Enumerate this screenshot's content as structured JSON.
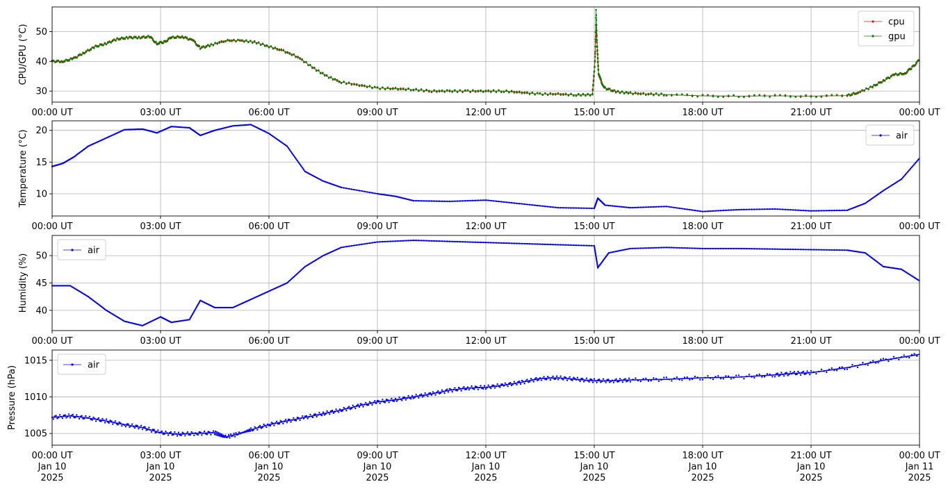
{
  "chart_data": [
    {
      "type": "line",
      "ylabel": "CPU/GPU (°C)",
      "ylim": [
        26.3,
        58.3
      ],
      "yticks": [
        30,
        40,
        50
      ],
      "grid": true,
      "legend": "top-right",
      "x_ticks": [
        "00:00 UT",
        "03:00 UT",
        "06:00 UT",
        "09:00 UT",
        "12:00 UT",
        "15:00 UT",
        "18:00 UT",
        "21:00 UT",
        "00:00 UT"
      ],
      "x_hours": [
        0,
        0.5,
        1,
        1.5,
        2,
        2.5,
        3,
        3.5,
        4,
        4.5,
        5,
        5.5,
        6,
        6.5,
        7,
        7.5,
        8,
        8.5,
        9,
        9.5,
        10,
        10.5,
        11,
        11.5,
        12,
        12.5,
        13,
        13.5,
        14,
        14.5,
        15,
        15.05,
        15.1,
        15.2,
        15.5,
        16,
        17,
        18,
        19,
        20,
        21,
        22,
        22.5,
        23,
        23.5,
        24
      ],
      "series": [
        {
          "name": "cpu",
          "color": "#ff0000",
          "values": [
            40,
            40.5,
            42,
            44.5,
            46,
            47.5,
            48,
            48,
            48,
            46.5,
            48,
            47.5,
            44.5,
            46.5,
            47,
            46.5,
            45,
            43.5,
            42,
            40,
            37,
            34.5,
            32.5,
            31.5,
            31,
            31,
            30.5,
            30,
            30,
            30,
            30,
            30,
            29.5,
            29,
            29,
            29,
            28.5,
            28.5,
            29,
            52,
            35,
            31,
            29.5,
            29,
            28.5,
            28.5
          ]
        },
        {
          "name": "gpu",
          "color": "#008000",
          "values": [
            40,
            40.5,
            42,
            44.5,
            46,
            47.5,
            48,
            48,
            48,
            46.5,
            48,
            47.5,
            44.5,
            46.5,
            47,
            46.5,
            45,
            43.5,
            42,
            40,
            37,
            34.5,
            32.5,
            31.5,
            31,
            31,
            30.5,
            30,
            30,
            30,
            30,
            30,
            29.5,
            29,
            29,
            29,
            28.5,
            28.5,
            29,
            57,
            35,
            31,
            29.5,
            29,
            28.5,
            28.5
          ]
        }
      ],
      "tail": {
        "x_hours": [
          21,
          22,
          22.5,
          23,
          23.5,
          24
        ],
        "values": [
          28.5,
          28.5,
          30.5,
          33.5,
          36,
          40.5
        ]
      }
    },
    {
      "type": "line",
      "ylabel": "Temperature (°C)",
      "ylim": [
        6.5,
        21.5
      ],
      "yticks": [
        10,
        15,
        20
      ],
      "grid": true,
      "legend": "top-right",
      "x_ticks": [
        "00:00 UT",
        "03:00 UT",
        "06:00 UT",
        "09:00 UT",
        "12:00 UT",
        "15:00 UT",
        "18:00 UT",
        "21:00 UT",
        "00:00 UT"
      ],
      "series": [
        {
          "name": "air",
          "color": "#0000ff",
          "x_hours": [
            0,
            0.3,
            0.6,
            1,
            1.5,
            2,
            2.5,
            2.9,
            3.3,
            3.8,
            4.1,
            4.5,
            5,
            5.5,
            6,
            6.5,
            7,
            7.5,
            8,
            9,
            9.5,
            10,
            11,
            12,
            13,
            14,
            15,
            15.1,
            15.3,
            16,
            17,
            18,
            19,
            20,
            21,
            22,
            22.5,
            23,
            23.5,
            24
          ],
          "values": [
            14.3,
            14.8,
            15.8,
            17.5,
            18.8,
            20.1,
            20.2,
            19.6,
            20.6,
            20.4,
            19.2,
            20,
            20.7,
            20.9,
            19.5,
            17.5,
            13.5,
            12,
            11,
            10,
            9.6,
            8.9,
            8.8,
            9,
            8.4,
            7.8,
            7.7,
            9.3,
            8.2,
            7.8,
            8,
            7.2,
            7.5,
            7.6,
            7.3,
            7.4,
            8.5,
            10.5,
            12.3,
            15.6
          ]
        }
      ]
    },
    {
      "type": "line",
      "ylabel": "Humidity (%)",
      "ylim": [
        36.3,
        53.7
      ],
      "yticks": [
        40,
        45,
        50
      ],
      "grid": true,
      "legend": "top-left",
      "x_ticks": [
        "00:00 UT",
        "03:00 UT",
        "06:00 UT",
        "09:00 UT",
        "12:00 UT",
        "15:00 UT",
        "18:00 UT",
        "21:00 UT",
        "00:00 UT"
      ],
      "series": [
        {
          "name": "air",
          "color": "#0000ff",
          "x_hours": [
            0,
            0.5,
            1,
            1.5,
            2,
            2.5,
            3,
            3.3,
            3.8,
            4.1,
            4.5,
            5,
            5.5,
            6,
            6.5,
            7,
            7.5,
            8,
            9,
            10,
            11,
            12,
            13,
            14,
            15,
            15.1,
            15.4,
            16,
            17,
            18,
            19,
            20,
            21,
            22,
            22.5,
            23,
            23.5,
            24
          ],
          "values": [
            44.5,
            44.5,
            42.5,
            40,
            38,
            37.2,
            38.8,
            37.8,
            38.3,
            41.8,
            40.5,
            40.5,
            42,
            43.5,
            45,
            48,
            50,
            51.5,
            52.5,
            52.8,
            52.6,
            52.4,
            52.2,
            52,
            51.8,
            47.8,
            50.5,
            51.3,
            51.5,
            51.3,
            51.3,
            51.2,
            51.1,
            51,
            50.5,
            48,
            47.5,
            45.4
          ]
        }
      ]
    },
    {
      "type": "line",
      "ylabel": "Pressure (hPa)",
      "ylim": [
        1003.4,
        1016.4
      ],
      "yticks": [
        1005,
        1010,
        1015
      ],
      "grid": true,
      "legend": "top-left",
      "x_ticks": [
        "00:00 UT",
        "03:00 UT",
        "06:00 UT",
        "09:00 UT",
        "12:00 UT",
        "15:00 UT",
        "18:00 UT",
        "21:00 UT",
        "00:00 UT"
      ],
      "x_ticks_sub": [
        [
          "Jan 10",
          "2025"
        ],
        [
          "Jan 10",
          "2025"
        ],
        [
          "Jan 10",
          "2025"
        ],
        [
          "Jan 10",
          "2025"
        ],
        [
          "Jan 10",
          "2025"
        ],
        [
          "Jan 10",
          "2025"
        ],
        [
          "Jan 10",
          "2025"
        ],
        [
          "Jan 10",
          "2025"
        ],
        [
          "Jan 11",
          "2025"
        ]
      ],
      "series": [
        {
          "name": "air",
          "color": "#0000ff",
          "x_hours": [
            0,
            0.5,
            1,
            1.5,
            2,
            2.5,
            3,
            3.5,
            4,
            4.5,
            4.8,
            5.2,
            5.5,
            6,
            6.5,
            7,
            7.5,
            8,
            8.5,
            9,
            9.5,
            10,
            10.5,
            11,
            11.5,
            12,
            12.5,
            13,
            13.5,
            14,
            14.5,
            15,
            15.5,
            16,
            17,
            18,
            19,
            20,
            20.5,
            21,
            22,
            23,
            24
          ],
          "values": [
            1007.2,
            1007.4,
            1007.1,
            1006.7,
            1006.2,
            1005.8,
            1005.1,
            1004.9,
            1005,
            1005.1,
            1004.5,
            1005,
            1005.5,
            1006.2,
            1006.7,
            1007.2,
            1007.7,
            1008.2,
            1008.8,
            1009.3,
            1009.6,
            1010,
            1010.4,
            1010.9,
            1011.2,
            1011.3,
            1011.6,
            1012,
            1012.5,
            1012.6,
            1012.4,
            1012.2,
            1012.2,
            1012.3,
            1012.4,
            1012.6,
            1012.7,
            1013,
            1013.2,
            1013.3,
            1014,
            1015,
            1015.8
          ]
        }
      ]
    }
  ]
}
